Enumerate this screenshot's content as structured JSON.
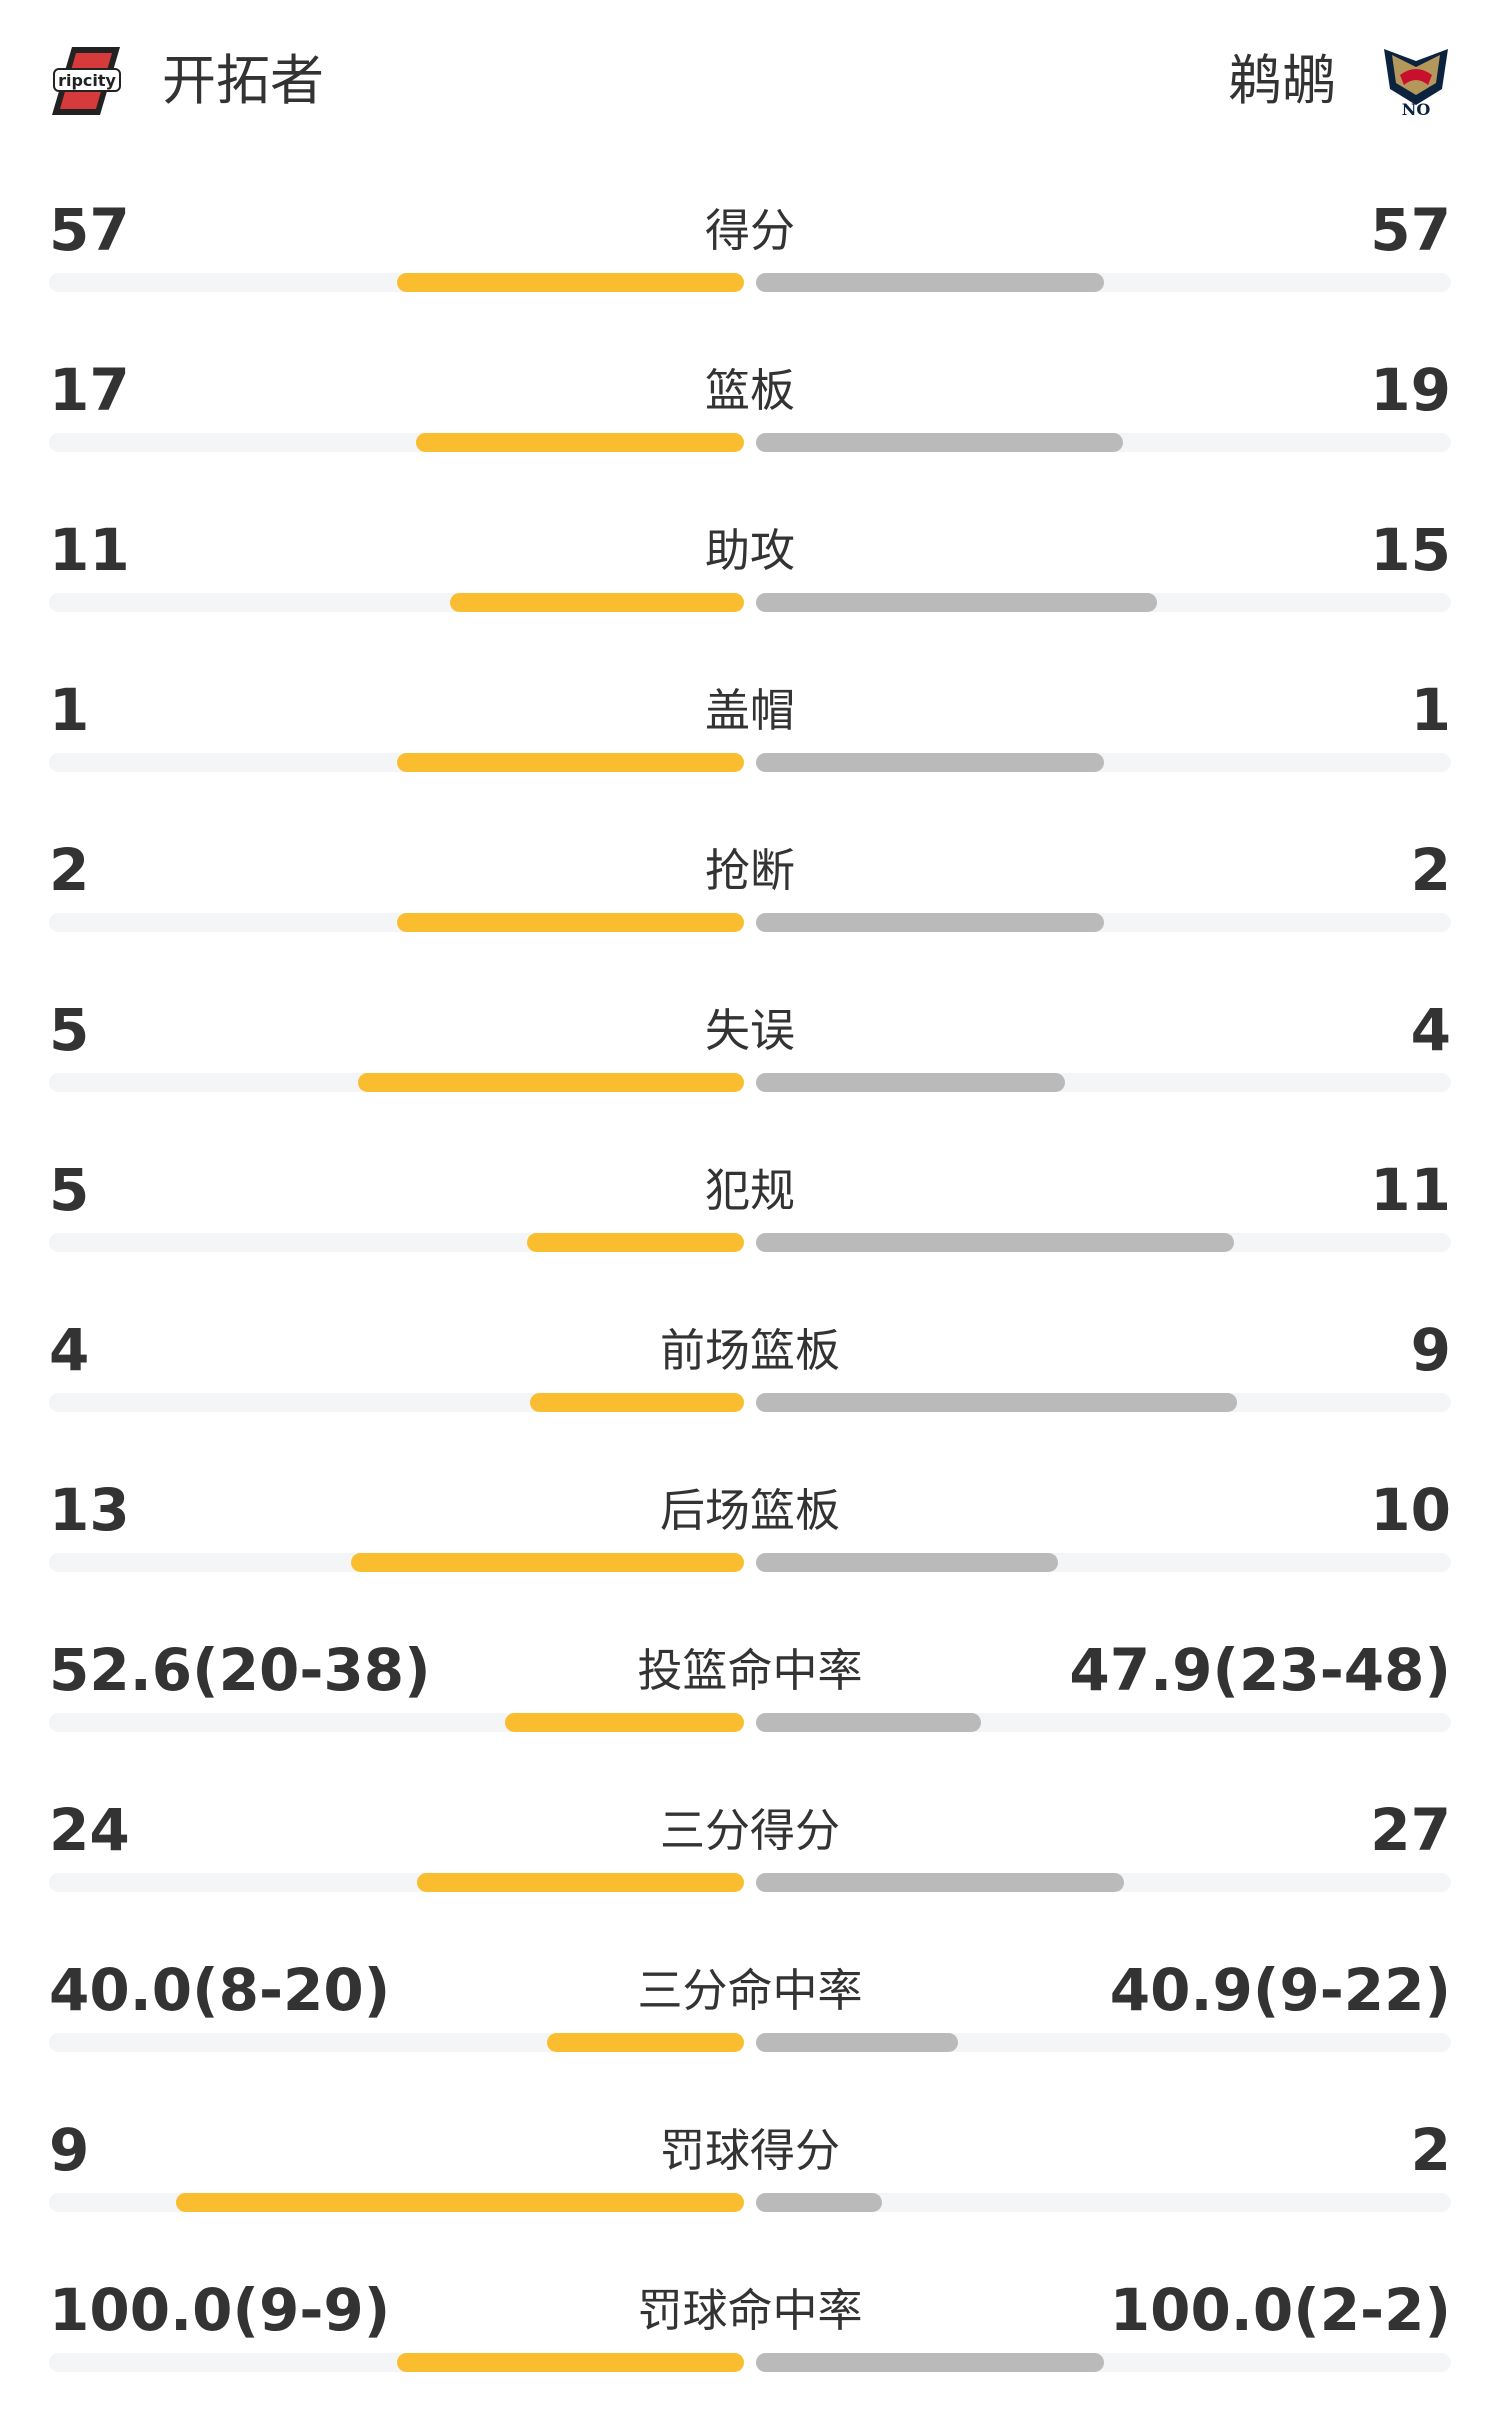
{
  "home": {
    "name": "开拓者",
    "logo_text": "ripcity",
    "color": "#fbbd30"
  },
  "away": {
    "name": "鹈鹕",
    "logo_text": "NO",
    "color": "#bababa"
  },
  "stats": [
    {
      "label": "得分",
      "left": "57",
      "right": "57",
      "left_share": 0.5,
      "right_share": 0.5
    },
    {
      "label": "篮板",
      "left": "17",
      "right": "19",
      "left_share": 0.472,
      "right_share": 0.528
    },
    {
      "label": "助攻",
      "left": "11",
      "right": "15",
      "left_share": 0.423,
      "right_share": 0.577
    },
    {
      "label": "盖帽",
      "left": "1",
      "right": "1",
      "left_share": 0.5,
      "right_share": 0.5
    },
    {
      "label": "抢断",
      "left": "2",
      "right": "2",
      "left_share": 0.5,
      "right_share": 0.5
    },
    {
      "label": "失误",
      "left": "5",
      "right": "4",
      "left_share": 0.556,
      "right_share": 0.444
    },
    {
      "label": "犯规",
      "left": "5",
      "right": "11",
      "left_share": 0.3125,
      "right_share": 0.6875
    },
    {
      "label": "前场篮板",
      "left": "4",
      "right": "9",
      "left_share": 0.308,
      "right_share": 0.692
    },
    {
      "label": "后场篮板",
      "left": "13",
      "right": "10",
      "left_share": 0.565,
      "right_share": 0.435
    },
    {
      "label": "投篮命中率",
      "left": "52.6(20-38)",
      "right": "47.9(23-48)",
      "left_share": 0.344,
      "right_share": 0.324
    },
    {
      "label": "三分得分",
      "left": "24",
      "right": "27",
      "left_share": 0.471,
      "right_share": 0.529
    },
    {
      "label": "三分命中率",
      "left": "40.0(8-20)",
      "right": "40.9(9-22)",
      "left_share": 0.284,
      "right_share": 0.29
    },
    {
      "label": "罚球得分",
      "left": "9",
      "right": "2",
      "left_share": 0.818,
      "right_share": 0.182
    },
    {
      "label": "罚球命中率",
      "left": "100.0(9-9)",
      "right": "100.0(2-2)",
      "left_share": 0.5,
      "right_share": 0.5
    }
  ]
}
